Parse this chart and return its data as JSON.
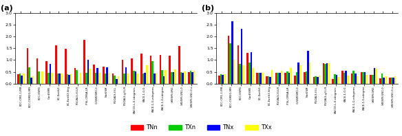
{
  "panel_a": {
    "label": "(a)",
    "categories": [
      "BCC-CM1-1-MR",
      "BCC-CSM2G-MR",
      "BCC-ESM1",
      "CanESM5",
      "EC-Earth3",
      "EC-Earth3-Veg",
      "FGOALS-f3-LR",
      "IPSL-CM6A-LR",
      "G-SWESM1-0",
      "NorESM",
      "FGOALS-f3-L",
      "FGOALS-g3-LR",
      "KACCE-L-0-edegrees",
      "KACE-1-0-G",
      "KACE-1-G-edegrees",
      "KACE-1-0-edegree",
      "UKESM-GN1",
      "UKESM-GN1-0",
      "UKESM-GN1-0-x"
    ],
    "TNn": [
      0.4,
      1.5,
      1.08,
      0.95,
      1.62,
      1.47,
      0.65,
      1.85,
      0.82,
      0.72,
      0.43,
      1.0,
      1.08,
      1.28,
      1.18,
      1.22,
      1.18,
      1.6,
      0.5
    ],
    "TXn": [
      0.42,
      0.7,
      0.53,
      0.45,
      0.43,
      0.4,
      0.58,
      0.45,
      0.45,
      0.42,
      0.35,
      0.42,
      0.55,
      0.42,
      0.95,
      0.57,
      0.5,
      0.48,
      0.55
    ],
    "TNx": [
      0.33,
      0.25,
      0.0,
      0.85,
      0.42,
      0.38,
      0.0,
      1.0,
      0.65,
      0.7,
      0.2,
      0.68,
      0.53,
      0.45,
      0.42,
      0.3,
      0.5,
      0.45,
      0.5
    ],
    "TXx": [
      0.42,
      0.32,
      0.53,
      0.45,
      0.43,
      0.4,
      0.46,
      0.62,
      0.46,
      0.47,
      0.3,
      0.42,
      0.42,
      0.77,
      0.42,
      0.58,
      0.6,
      0.52,
      0.55
    ]
  },
  "panel_b": {
    "label": "(b)",
    "categories": [
      "BCC-CM1-1-MR",
      "BCC-CSM2G-MR",
      "BCC-ESM1",
      "CanESM5",
      "EC-Earth3",
      "EC-Earth3-Veg",
      "FGOALS-f3-LR",
      "IPSL-CM6A-LR",
      "G-SWESM1-0",
      "NorESM",
      "FGOALS-f3-L",
      "FGOALS-g3-LR",
      "KACCE-L-0-edegrees",
      "KACE-1-0-G",
      "KACE-1-G-edegrees",
      "KACE-1-0-edegree",
      "UKESM-GN1",
      "UKESM-GN1-0",
      "UKESM-GN1-0-x"
    ],
    "TNn": [
      0.35,
      2.03,
      1.62,
      1.3,
      0.45,
      0.3,
      0.47,
      0.45,
      0.35,
      0.5,
      0.27,
      0.87,
      0.2,
      0.55,
      0.42,
      0.48,
      0.38,
      0.22,
      0.25
    ],
    "TXn": [
      0.4,
      1.72,
      0.85,
      0.9,
      0.45,
      0.3,
      0.47,
      0.52,
      0.5,
      0.52,
      0.3,
      0.83,
      0.4,
      0.45,
      0.55,
      0.48,
      0.38,
      0.42,
      0.25
    ],
    "TNx": [
      0.38,
      2.65,
      2.32,
      1.32,
      0.45,
      0.27,
      0.47,
      0.45,
      0.9,
      1.4,
      0.28,
      0.87,
      0.38,
      0.55,
      0.42,
      0.5,
      0.65,
      0.25,
      0.25
    ],
    "TXx": [
      0.4,
      1.0,
      0.78,
      0.65,
      0.45,
      0.58,
      0.55,
      0.65,
      0.78,
      0.9,
      0.35,
      0.87,
      0.28,
      0.35,
      0.3,
      0.38,
      0.62,
      0.3,
      0.32
    ]
  },
  "colors": {
    "TNn": "#ff0000",
    "TXn": "#00cc00",
    "TNx": "#0000ff",
    "TXx": "#ffff00"
  },
  "ylim": [
    0,
    3
  ],
  "yticks": [
    0,
    0.5,
    1.0,
    1.5,
    2.0,
    2.5,
    3.0
  ],
  "series": [
    "TNn",
    "TXn",
    "TNx",
    "TXx"
  ]
}
